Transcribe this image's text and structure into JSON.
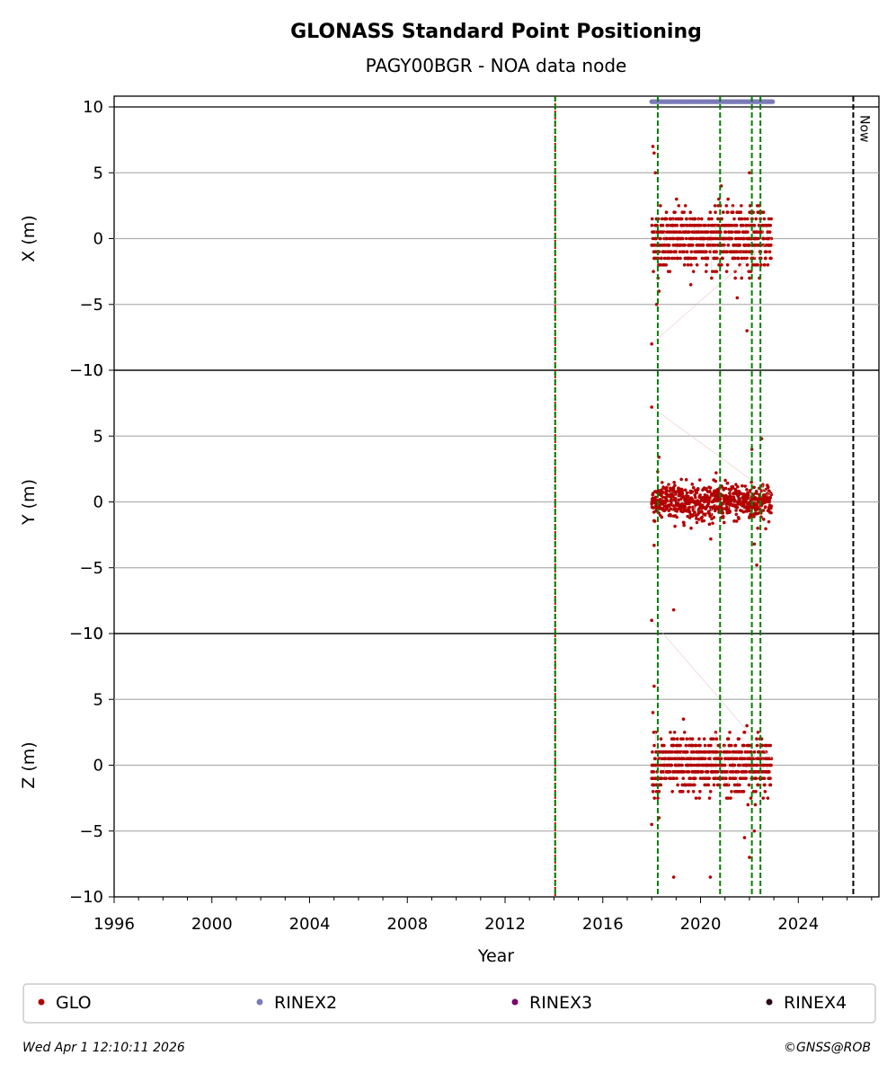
{
  "chart_data": {
    "type": "scatter",
    "title": "GLONASS Standard Point Positioning",
    "subtitle": "PAGY00BGR - NOA data node",
    "xlabel": "Year",
    "xlim": [
      1996,
      2027.3
    ],
    "x_ticks": [
      "1996",
      "2000",
      "2004",
      "2008",
      "2012",
      "2016",
      "2020",
      "2024"
    ],
    "y_ticks": [
      "−10",
      "−5",
      "0",
      "5",
      "10"
    ],
    "grid": true,
    "now_label": "Now",
    "now_year": 2026.25,
    "panels": [
      {
        "ylabel": "X (m)",
        "ylim": [
          -10,
          10
        ],
        "spread": 1.6,
        "outliers": [
          [
            2018.0,
            -8.0
          ],
          [
            2018.05,
            7.0
          ],
          [
            2018.1,
            6.5
          ],
          [
            2018.2,
            -5.0
          ],
          [
            2018.3,
            -4.0
          ],
          [
            2018.15,
            5.0
          ],
          [
            2020.85,
            4.0
          ],
          [
            2021.9,
            -7.0
          ],
          [
            2022.0,
            5.0
          ],
          [
            2019.6,
            -3.5
          ],
          [
            2021.5,
            -4.5
          ]
        ]
      },
      {
        "ylabel": "Y (m)",
        "ylim": [
          -10,
          10
        ],
        "spread": 1.0,
        "outliers": [
          [
            2018.0,
            7.2
          ],
          [
            2018.9,
            -8.2
          ],
          [
            2018.1,
            -3.3
          ],
          [
            2022.3,
            -4.8
          ],
          [
            2022.5,
            4.8
          ],
          [
            2022.1,
            4.0
          ],
          [
            2018.3,
            3.4
          ],
          [
            2022.2,
            -3.2
          ]
        ]
      },
      {
        "ylabel": "Z (m)",
        "ylim": [
          -10,
          10
        ],
        "spread": 1.5,
        "outliers": [
          [
            2018.0,
            11.0
          ],
          [
            2018.1,
            6.0
          ],
          [
            2018.9,
            -8.5
          ],
          [
            2020.4,
            -8.5
          ],
          [
            2021.8,
            -5.5
          ],
          [
            2022.0,
            -7.0
          ],
          [
            2018.0,
            -4.5
          ],
          [
            2018.3,
            -4.0
          ],
          [
            2019.3,
            3.5
          ],
          [
            2018.05,
            4.0
          ],
          [
            2022.2,
            -5.0
          ]
        ]
      }
    ],
    "glo_data_range": [
      2018.0,
      2022.9
    ],
    "rinex2_range": [
      2018.0,
      2022.95
    ],
    "rinex2_y": 10.4,
    "events": {
      "red_dotted": [
        2014.05
      ],
      "green_dashed": [
        2014.05,
        2018.25,
        2020.8,
        2022.1,
        2022.45
      ]
    },
    "colors": {
      "glo": "#b30000",
      "rinex2": "#7b7bb8",
      "rinex3": "#7a006e",
      "rinex4": "#2a0a1a",
      "event_green": "#008000",
      "event_red": "#cc0000"
    },
    "legend": {
      "placement": "bottom",
      "items": [
        {
          "label": "GLO",
          "color": "#b30000"
        },
        {
          "label": "RINEX2",
          "color": "#7b7bb8"
        },
        {
          "label": "RINEX3",
          "color": "#7a006e"
        },
        {
          "label": "RINEX4",
          "color": "#2a0a1a"
        }
      ]
    }
  },
  "footer": {
    "timestamp": "Wed Apr  1 12:10:11 2026",
    "credit": "©GNSS@ROB"
  }
}
